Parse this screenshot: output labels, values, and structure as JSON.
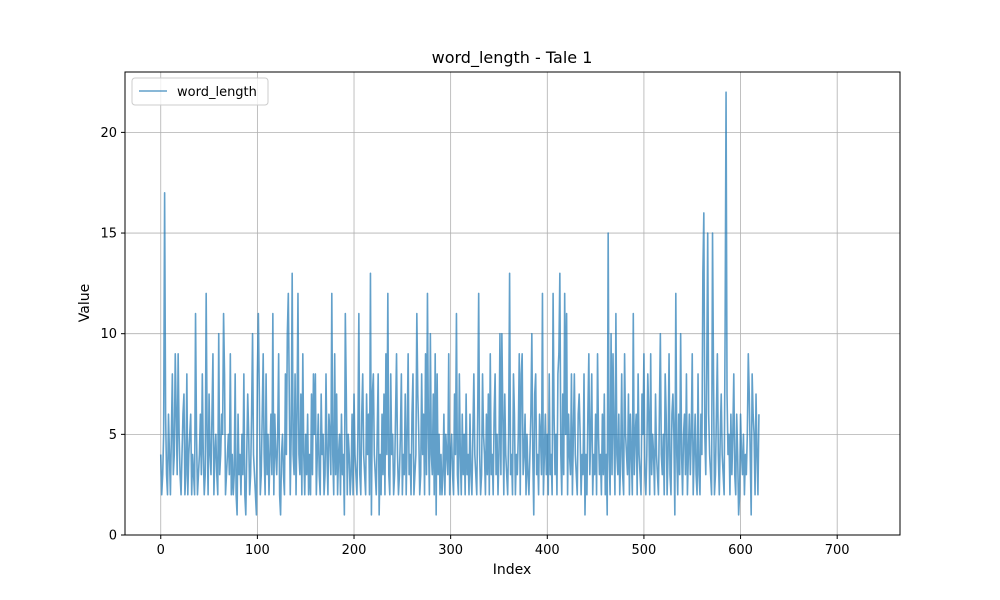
{
  "chart_data": {
    "type": "line",
    "title": "word_length - Tale 1",
    "xlabel": "Index",
    "ylabel": "Value",
    "xlim": [
      -37,
      765
    ],
    "ylim": [
      0,
      23
    ],
    "x_ticks": [
      0,
      100,
      200,
      300,
      400,
      500,
      600,
      700
    ],
    "y_ticks": [
      0,
      5,
      10,
      15,
      20
    ],
    "grid": true,
    "legend": "top-left",
    "series": [
      {
        "name": "word_length",
        "color": "#1f77b4",
        "values": [
          4,
          2,
          3,
          5,
          17,
          6,
          3,
          2,
          6,
          4,
          2,
          5,
          8,
          3,
          4,
          9,
          6,
          3,
          9,
          5,
          3,
          2,
          4,
          6,
          7,
          2,
          3,
          8,
          2,
          4,
          5,
          6,
          2,
          4,
          3,
          2,
          11,
          5,
          2,
          3,
          4,
          6,
          3,
          8,
          4,
          2,
          3,
          12,
          5,
          2,
          7,
          4,
          3,
          6,
          9,
          2,
          4,
          5,
          3,
          2,
          10,
          3,
          4,
          6,
          5,
          11,
          8,
          2,
          3,
          4,
          5,
          3,
          9,
          2,
          4,
          2,
          3,
          8,
          2,
          1,
          6,
          3,
          4,
          2,
          5,
          3,
          8,
          2,
          1,
          4,
          7,
          5,
          2,
          3,
          6,
          10,
          4,
          3,
          2,
          1,
          8,
          11,
          7,
          2,
          3,
          6,
          9,
          4,
          2,
          8,
          3,
          5,
          2,
          4,
          6,
          3,
          11,
          2,
          6,
          4,
          3,
          5,
          9,
          2,
          1,
          4,
          5,
          3,
          2,
          8,
          4,
          10,
          12,
          7,
          2,
          5,
          13,
          4,
          3,
          8,
          2,
          6,
          12,
          4,
          3,
          7,
          2,
          9,
          4,
          2,
          5,
          3,
          6,
          2,
          4,
          2,
          7,
          3,
          8,
          5,
          8,
          2,
          4,
          6,
          3,
          2,
          7,
          4,
          5,
          2,
          3,
          8,
          4,
          2,
          6,
          5,
          3,
          12,
          4,
          2,
          9,
          3,
          7,
          2,
          4,
          5,
          2,
          6,
          3,
          4,
          1,
          11,
          7,
          2,
          5,
          4,
          2,
          3,
          6,
          2,
          7,
          4,
          3,
          2,
          5,
          11,
          3,
          2,
          6,
          8,
          4,
          3,
          2,
          7,
          4,
          6,
          2,
          13,
          1,
          7,
          8,
          4,
          3,
          2,
          5,
          8,
          1,
          4,
          2,
          6,
          3,
          7,
          2,
          9,
          4,
          12,
          3,
          2,
          8,
          4,
          5,
          2,
          3,
          6,
          9,
          4,
          2,
          3,
          5,
          8,
          2,
          4,
          3,
          7,
          2,
          5,
          9,
          3,
          4,
          2,
          6,
          8,
          2,
          3,
          4,
          11,
          7,
          5,
          2,
          3,
          8,
          4,
          6,
          2,
          9,
          3,
          12,
          5,
          2,
          10,
          4,
          3,
          7,
          2,
          9,
          1,
          8,
          3,
          5,
          2,
          4,
          2,
          3,
          6,
          2,
          5,
          4,
          3,
          9,
          2,
          4,
          5,
          3,
          2,
          7,
          4,
          11,
          3,
          2,
          8,
          4,
          2,
          6,
          3,
          5,
          2,
          7,
          3,
          4,
          2,
          6,
          3,
          2,
          5,
          8,
          4,
          3,
          2,
          6,
          12,
          4,
          2,
          3,
          8,
          5,
          4,
          2,
          6,
          3,
          7,
          2,
          9,
          3,
          4,
          2,
          6,
          8,
          3,
          5,
          2,
          4,
          10,
          3,
          10,
          6,
          2,
          7,
          4,
          3,
          2,
          5,
          13,
          3,
          4,
          2,
          8,
          6,
          2,
          4,
          3,
          5,
          9,
          2,
          8,
          9,
          3,
          4,
          6,
          2,
          5,
          3,
          2,
          4,
          6,
          10,
          4,
          1,
          7,
          8,
          3,
          4,
          2,
          6,
          5,
          3,
          12,
          2,
          4,
          6,
          3,
          5,
          2,
          8,
          3,
          4,
          2,
          12,
          6,
          3,
          5,
          2,
          8,
          9,
          13,
          4,
          2,
          7,
          3,
          12,
          5,
          11,
          2,
          6,
          4,
          3,
          8,
          2,
          5,
          8,
          4,
          3,
          2,
          6,
          7,
          5,
          2,
          4,
          3,
          8,
          1,
          4,
          2,
          6,
          9,
          3,
          5,
          8,
          2,
          4,
          3,
          6,
          2,
          9,
          5,
          3,
          4,
          2,
          6,
          3,
          7,
          2,
          4,
          1,
          15,
          4,
          2,
          10,
          3,
          9,
          5,
          2,
          11,
          4,
          3,
          6,
          2,
          4,
          8,
          3,
          2,
          9,
          5,
          4,
          3,
          7,
          2,
          6,
          4,
          2,
          11,
          3,
          5,
          6,
          2,
          8,
          4,
          3,
          2,
          7,
          5,
          9,
          3,
          2,
          4,
          8,
          6,
          2,
          9,
          3,
          5,
          4,
          2,
          7,
          4,
          3,
          2,
          6,
          10,
          4,
          3,
          5,
          2,
          8,
          6,
          2,
          4,
          9,
          3,
          2,
          6,
          7,
          5,
          1,
          12,
          4,
          2,
          6,
          3,
          10,
          4,
          2,
          5,
          6,
          3,
          8,
          2,
          4,
          6,
          3,
          5,
          9,
          2,
          4,
          6,
          3,
          2,
          8,
          3,
          2,
          6,
          4,
          13,
          16,
          5,
          3,
          8,
          15,
          6,
          4,
          3,
          2,
          15,
          8,
          2,
          3,
          6,
          9,
          4,
          2,
          5,
          7,
          4,
          3,
          2,
          10,
          22,
          7,
          4,
          5,
          2,
          6,
          3,
          5,
          8,
          3,
          2,
          6,
          4,
          1,
          2,
          6,
          4,
          3,
          5,
          2,
          4,
          3,
          5,
          9,
          7,
          4,
          1,
          8,
          6,
          5,
          2,
          7,
          4,
          2,
          6
        ]
      }
    ]
  }
}
